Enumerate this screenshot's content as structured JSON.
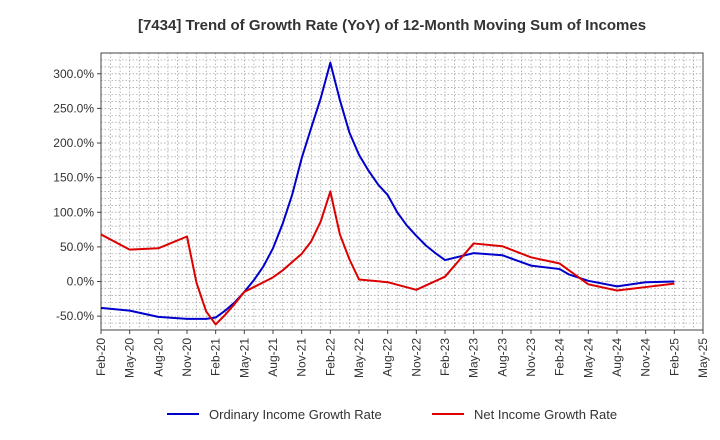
{
  "chart_data": {
    "type": "line",
    "title": "[7434]  Trend of Growth Rate (YoY) of 12-Month Moving Sum of Incomes",
    "xlabel": "",
    "ylabel": "",
    "ylim": [
      -70,
      330
    ],
    "yticks": [
      -50,
      0,
      50,
      100,
      150,
      200,
      250,
      300
    ],
    "ytick_labels": [
      "-50.0%",
      "0.0%",
      "50.0%",
      "100.0%",
      "150.0%",
      "200.0%",
      "250.0%",
      "300.0%"
    ],
    "xlim": [
      "2020-02",
      "2025-05"
    ],
    "xtick_labels": [
      "Feb-20",
      "May-20",
      "Aug-20",
      "Nov-20",
      "Feb-21",
      "May-21",
      "Aug-21",
      "Nov-21",
      "Feb-22",
      "May-22",
      "Aug-22",
      "Nov-22",
      "Feb-23",
      "May-23",
      "Aug-23",
      "Nov-23",
      "Feb-24",
      "May-24",
      "Aug-24",
      "Nov-24",
      "Feb-25",
      "May-25"
    ],
    "grid": true,
    "legend_position": "bottom",
    "series": [
      {
        "name": "Ordinary Income Growth Rate",
        "color": "#0000cc",
        "x": [
          "2020-02",
          "2020-05",
          "2020-08",
          "2020-11",
          "2021-01",
          "2021-02",
          "2021-03",
          "2021-04",
          "2021-05",
          "2021-06",
          "2021-07",
          "2021-08",
          "2021-09",
          "2021-10",
          "2021-11",
          "2021-12",
          "2022-01",
          "2022-02",
          "2022-03",
          "2022-04",
          "2022-05",
          "2022-06",
          "2022-07",
          "2022-08",
          "2022-09",
          "2022-10",
          "2022-11",
          "2022-12",
          "2023-01",
          "2023-02",
          "2023-05",
          "2023-08",
          "2023-11",
          "2024-02",
          "2024-03",
          "2024-05",
          "2024-08",
          "2024-11",
          "2025-02"
        ],
        "values": [
          -38,
          -42,
          -51,
          -54,
          -54,
          -52,
          -42,
          -30,
          -15,
          2,
          22,
          48,
          83,
          125,
          178,
          222,
          265,
          316,
          262,
          215,
          183,
          160,
          140,
          125,
          100,
          81,
          66,
          52,
          41,
          31,
          41,
          38,
          23,
          18,
          10,
          1,
          -7,
          -1,
          0
        ]
      },
      {
        "name": "Net Income Growth Rate",
        "color": "#dd0000",
        "x": [
          "2020-02",
          "2020-05",
          "2020-08",
          "2020-11",
          "2020-12",
          "2021-01",
          "2021-02",
          "2021-03",
          "2021-04",
          "2021-05",
          "2021-06",
          "2021-07",
          "2021-08",
          "2021-09",
          "2021-10",
          "2021-11",
          "2021-12",
          "2022-01",
          "2022-02",
          "2022-03",
          "2022-04",
          "2022-05",
          "2022-08",
          "2022-11",
          "2023-02",
          "2023-05",
          "2023-08",
          "2023-11",
          "2024-02",
          "2024-05",
          "2024-08",
          "2024-11",
          "2025-02"
        ],
        "values": [
          68,
          46,
          48,
          65,
          -2,
          -43,
          -62,
          -48,
          -32,
          -15,
          -8,
          -1,
          6,
          16,
          28,
          40,
          58,
          87,
          130,
          68,
          32,
          3,
          -1,
          -12,
          7,
          55,
          51,
          35,
          26,
          -4,
          -13,
          -8,
          -3
        ]
      }
    ]
  }
}
